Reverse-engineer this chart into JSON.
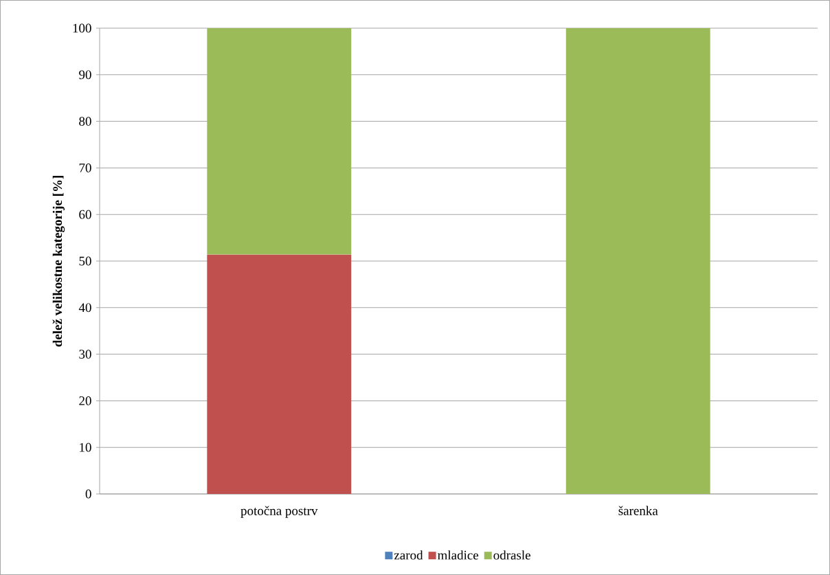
{
  "chart_data": {
    "type": "bar",
    "stacked": true,
    "ylabel": "delež velikostne kategorije [%]",
    "categories": [
      "potočna postrv",
      "šarenka"
    ],
    "series": [
      {
        "name": "zarod",
        "color": "#4f81bd",
        "values": [
          0,
          0
        ]
      },
      {
        "name": "mladice",
        "color": "#c0504d",
        "values": [
          51.4,
          0
        ]
      },
      {
        "name": "odrasle",
        "color": "#9bbb59",
        "values": [
          48.6,
          100
        ]
      }
    ],
    "ylim": [
      0,
      100
    ],
    "yticks": [
      0,
      10,
      20,
      30,
      40,
      50,
      60,
      70,
      80,
      90,
      100
    ],
    "grid": "y",
    "legend": "bottom"
  }
}
